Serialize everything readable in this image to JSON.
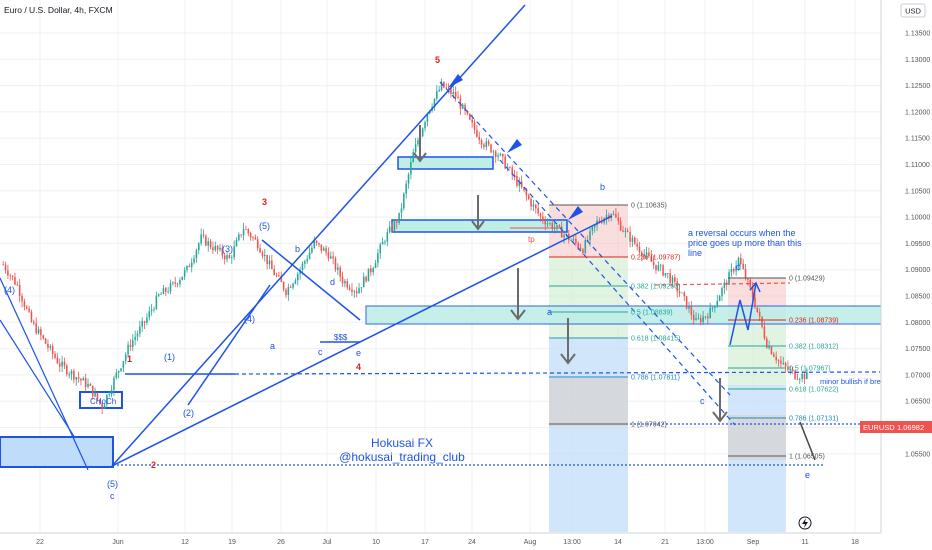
{
  "header": {
    "symbol_title": "Euro / U.S. Dollar, 4h, FXCM",
    "currency_button": "USD"
  },
  "price_tag": {
    "symbol": "EURUSD",
    "price": "1.06982"
  },
  "watermark": {
    "line1": "Hokusai FX",
    "line2": "@hokusai_trading_club"
  },
  "annotations": {
    "reversal_note": [
      "a reversal occurs when the",
      "price goes up more than this",
      "line"
    ],
    "minor_bullish": "minor bullish if break this",
    "choch": "CHoCh",
    "sss": "$$$",
    "tp": "tp",
    "wave_major": [
      "1",
      "2",
      "3",
      "4",
      "5"
    ],
    "wave_minor": [
      "(1)",
      "(2)",
      "(3)",
      "(4)",
      "(5)",
      "(4)",
      "(5)",
      "(5)"
    ],
    "wave_letters": [
      "a",
      "b",
      "c",
      "d",
      "e",
      "a",
      "b",
      "c",
      "d",
      "e",
      "c"
    ]
  },
  "fib_left": [
    {
      "label": "0 (1.10635)"
    },
    {
      "label": "0.236 (1.09787)"
    },
    {
      "label": "0.382 (1.09263)"
    },
    {
      "label": "0.5 (1.08839)"
    },
    {
      "label": "0.618 (1.08415)"
    },
    {
      "label": "0.786 (1.07811)"
    },
    {
      "label": "1 (1.07042)"
    }
  ],
  "fib_right": [
    {
      "label": "0 (1.09429)"
    },
    {
      "label": "0.236 (1.08739)"
    },
    {
      "label": "0.382 (1.08312)"
    },
    {
      "label": "0.5 (1.07967)"
    },
    {
      "label": "0.618 (1.07622)"
    },
    {
      "label": "0.786 (1.07131)"
    },
    {
      "label": "1 (1.06505)"
    }
  ],
  "chart_data": {
    "type": "candlestick",
    "title": "Euro / U.S. Dollar, 4h, FXCM",
    "y_ticks": [
      "1.13500",
      "1.13000",
      "1.12500",
      "1.12000",
      "1.11500",
      "1.11000",
      "1.10500",
      "1.10000",
      "1.09500",
      "1.09000",
      "1.08500",
      "1.08000",
      "1.07500",
      "1.07000",
      "1.06500",
      "1.06000",
      "1.05500"
    ],
    "x_ticks": [
      "22",
      "Jun",
      "12",
      "19",
      "26",
      "Jul",
      "10",
      "17",
      "24",
      "Aug",
      "13:00",
      "14",
      "21",
      "13:00",
      "Sep",
      "11",
      "18"
    ],
    "ylim": [
      1.0525,
      1.1375
    ],
    "grid": true,
    "legend": "none",
    "colors": {
      "up": "#26a69a",
      "down": "#ef5350",
      "lines": "#1e53e5"
    },
    "approx_close_path": [
      1.091,
      1.087,
      1.08,
      1.076,
      1.072,
      1.07,
      1.068,
      1.064,
      1.07,
      1.076,
      1.08,
      1.085,
      1.087,
      1.09,
      1.096,
      1.094,
      1.092,
      1.098,
      1.095,
      1.09,
      1.086,
      1.09,
      1.095,
      1.093,
      1.088,
      1.086,
      1.09,
      1.096,
      1.1,
      1.112,
      1.12,
      1.125,
      1.123,
      1.118,
      1.114,
      1.112,
      1.108,
      1.104,
      1.1,
      1.098,
      1.096,
      1.094,
      1.099,
      1.101,
      1.097,
      1.094,
      1.091,
      1.089,
      1.085,
      1.08,
      1.082,
      1.087,
      1.092,
      1.085,
      1.076,
      1.072,
      1.07,
      1.0698
    ]
  }
}
